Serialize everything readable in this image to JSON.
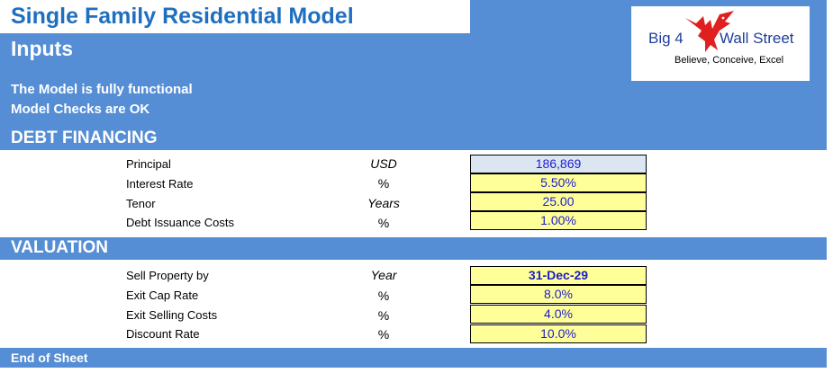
{
  "title": "Single Family Residential Model",
  "section_title": "Inputs",
  "checks": {
    "line1": "The Model is fully functional",
    "line2": "Model Checks are OK"
  },
  "logo": {
    "left_text": "Big 4",
    "right_text": "Wall Street",
    "tagline": "Believe, Conceive, Excel",
    "icon": "eagle-icon",
    "accent_color": "#e02020"
  },
  "colors": {
    "band_blue": "#558ed5",
    "input_yellow": "#ffff99",
    "calc_grey": "#dce6f2",
    "value_blue": "#1c1ccf",
    "title_blue": "#1f6fbf"
  },
  "debt_financing": {
    "header": "DEBT FINANCING",
    "rows": [
      {
        "label": "Principal",
        "unit": "USD",
        "value": "186,869"
      },
      {
        "label": "Interest Rate",
        "unit": "%",
        "value": "5.50%"
      },
      {
        "label": "Tenor",
        "unit": "Years",
        "value": "25.00"
      },
      {
        "label": "Debt Issuance Costs",
        "unit": "%",
        "value": "1.00%"
      }
    ]
  },
  "valuation": {
    "header": "VALUATION",
    "rows": [
      {
        "label": "Sell Property by",
        "unit": "Year",
        "value": "31-Dec-29"
      },
      {
        "label": "Exit Cap Rate",
        "unit": "%",
        "value": "8.0%"
      },
      {
        "label": "Exit Selling Costs",
        "unit": "%",
        "value": "4.0%"
      },
      {
        "label": "Discount Rate",
        "unit": "%",
        "value": "10.0%"
      }
    ]
  },
  "footer": "End of Sheet"
}
